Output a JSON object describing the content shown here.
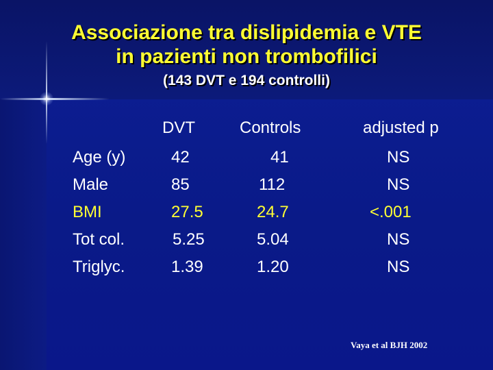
{
  "title": {
    "line1": "Associazione tra dislipidemia e VTE",
    "line2": "in pazienti non trombofilici",
    "subtitle": "(143 DVT e 194 controlli)"
  },
  "table": {
    "headers": {
      "dvt": "DVT",
      "controls": "Controls",
      "p": "adjusted p"
    },
    "rows": [
      {
        "label": "Age (y)",
        "dvt": "42",
        "controls": "41",
        "p": "NS",
        "highlight": false
      },
      {
        "label": "Male",
        "dvt": "85",
        "controls": "112",
        "p": "NS",
        "highlight": false
      },
      {
        "label": "BMI",
        "dvt": "27.5",
        "controls": "24.7",
        "p": "<.001",
        "highlight": true
      },
      {
        "label": "Tot col.",
        "dvt": "5.25",
        "controls": "5.04",
        "p": "NS",
        "highlight": false
      },
      {
        "label": "Triglyc.",
        "dvt": "1.39",
        "controls": "1.20",
        "p": "NS",
        "highlight": false
      }
    ]
  },
  "footnote": "Vaya et al BJH 2002",
  "colors": {
    "title": "#ffff33",
    "text": "#ffffff",
    "highlight": "#ffff33",
    "background": "#0b1a8a"
  }
}
